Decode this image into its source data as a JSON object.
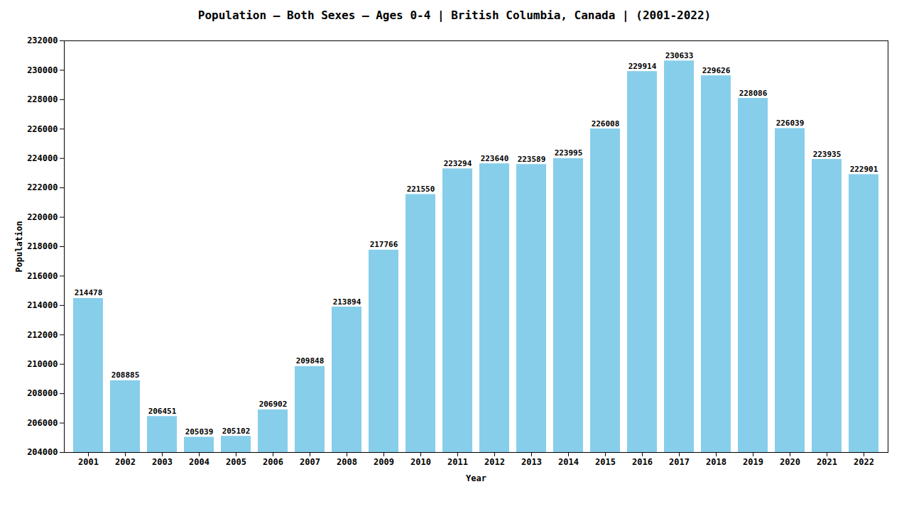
{
  "chart_data": {
    "type": "bar",
    "title": "Population – Both Sexes – Ages 0-4 | British Columbia, Canada |  (2001-2022)",
    "x_label": "Year",
    "y_label": "Population",
    "categories": [
      "2001",
      "2002",
      "2003",
      "2004",
      "2005",
      "2006",
      "2007",
      "2008",
      "2009",
      "2010",
      "2011",
      "2012",
      "2013",
      "2014",
      "2015",
      "2016",
      "2017",
      "2018",
      "2019",
      "2020",
      "2021",
      "2022"
    ],
    "values": [
      214478,
      208885,
      206451,
      205039,
      205102,
      206902,
      209848,
      213894,
      217766,
      221550,
      223294,
      223640,
      223589,
      223995,
      226008,
      229914,
      230633,
      229626,
      228086,
      226039,
      223935,
      222901
    ],
    "color": "#87CEEB",
    "ylim": [
      204000,
      232000
    ],
    "yticks": [
      204000,
      206000,
      208000,
      210000,
      212000,
      214000,
      216000,
      218000,
      220000,
      222000,
      224000,
      226000,
      228000,
      230000,
      232000
    ],
    "grid": false,
    "data_labels": true
  }
}
